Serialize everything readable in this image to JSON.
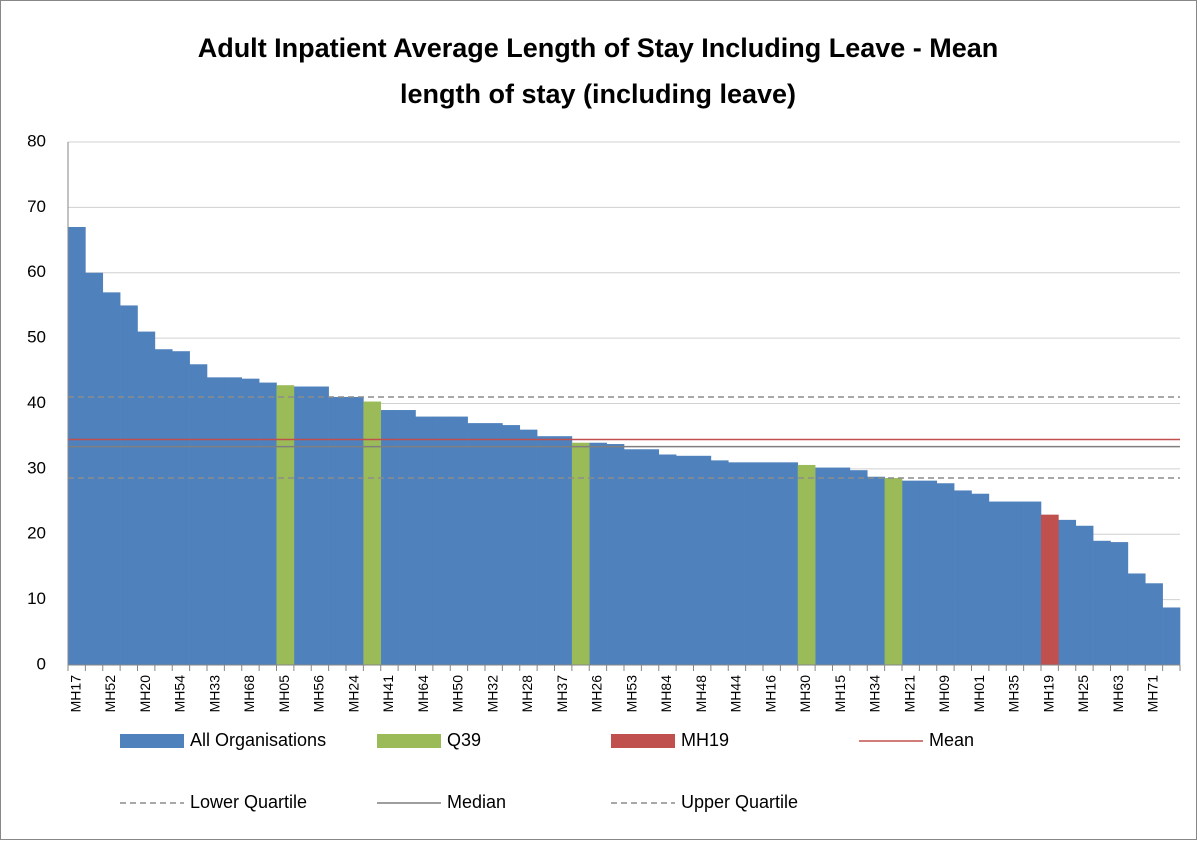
{
  "chart_data": {
    "type": "bar",
    "title": [
      "Adult Inpatient Average Length of Stay Including Leave - Mean",
      "length of stay (including leave)"
    ],
    "categories": [
      "MH17",
      null,
      "MH52",
      null,
      "MH20",
      null,
      "MH54",
      null,
      "MH33",
      null,
      "MH68",
      null,
      "MH05",
      null,
      "MH56",
      null,
      "MH24",
      null,
      "MH41",
      null,
      "MH64",
      null,
      "MH50",
      null,
      "MH32",
      null,
      "MH28",
      null,
      "MH37",
      null,
      "MH26",
      null,
      "MH53",
      null,
      "MH84",
      null,
      "MH48",
      null,
      "MH44",
      null,
      "MH16",
      null,
      "MH30",
      null,
      "MH15",
      null,
      "MH34",
      null,
      "MH21",
      null,
      "MH09",
      null,
      "MH01",
      null,
      "MH35",
      null,
      "MH19",
      null,
      "MH25",
      null,
      "MH63",
      null,
      "MH71",
      null
    ],
    "series": [
      {
        "name": "All Organisations",
        "color": "#4f81bd",
        "values": [
          67,
          60,
          57,
          55,
          51,
          48.3,
          48,
          46,
          44,
          44,
          43.8,
          43.2,
          null,
          42.6,
          42.6,
          41,
          41,
          null,
          39,
          39,
          38,
          38,
          38,
          37,
          37,
          36.7,
          36,
          35,
          35,
          null,
          34,
          33.8,
          33,
          33,
          32.2,
          32,
          32,
          31.3,
          31,
          31,
          31,
          31,
          null,
          30.2,
          30.2,
          29.8,
          28.8,
          null,
          28.2,
          28.2,
          27.8,
          26.7,
          26.2,
          25,
          25,
          25,
          null,
          22.2,
          21.3,
          19,
          18.8,
          14,
          12.5,
          8.8
        ]
      },
      {
        "name": "Q39",
        "color": "#9bbb59",
        "values": [
          null,
          null,
          null,
          null,
          null,
          null,
          null,
          null,
          null,
          null,
          null,
          null,
          42.8,
          null,
          null,
          null,
          null,
          40.3,
          null,
          null,
          null,
          null,
          null,
          null,
          null,
          null,
          null,
          null,
          null,
          34,
          null,
          null,
          null,
          null,
          null,
          null,
          null,
          null,
          null,
          null,
          null,
          null,
          30.6,
          null,
          null,
          null,
          null,
          28.6,
          null,
          null,
          null,
          null,
          null,
          null,
          null,
          null,
          null,
          null,
          null,
          null,
          null,
          null,
          null,
          null
        ]
      },
      {
        "name": "MH19",
        "color": "#c0504d",
        "values": [
          null,
          null,
          null,
          null,
          null,
          null,
          null,
          null,
          null,
          null,
          null,
          null,
          null,
          null,
          null,
          null,
          null,
          null,
          null,
          null,
          null,
          null,
          null,
          null,
          null,
          null,
          null,
          null,
          null,
          null,
          null,
          null,
          null,
          null,
          null,
          null,
          null,
          null,
          null,
          null,
          null,
          null,
          null,
          null,
          null,
          null,
          null,
          null,
          null,
          null,
          null,
          null,
          null,
          null,
          null,
          null,
          23,
          null,
          null,
          null,
          null,
          null,
          null,
          null
        ]
      }
    ],
    "reference_lines": [
      {
        "name": "Mean",
        "value": 34.5,
        "color": "#c0504d",
        "dashed": false
      },
      {
        "name": "Lower Quartile",
        "value": 28.6,
        "color": "#8c8c8c",
        "dashed": true
      },
      {
        "name": "Median",
        "value": 33.4,
        "color": "#7f7f7f",
        "dashed": false
      },
      {
        "name": "Upper Quartile",
        "value": 41,
        "color": "#8c8c8c",
        "dashed": true
      }
    ],
    "ylim": [
      0,
      80
    ],
    "yticks": [
      0,
      10,
      20,
      30,
      40,
      50,
      60,
      70,
      80
    ],
    "grid": true
  }
}
